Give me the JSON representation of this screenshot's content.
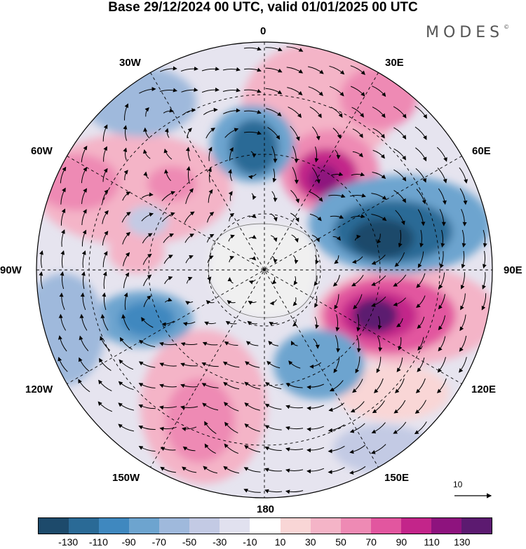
{
  "title": "Base 29/12/2024 00 UTC, valid 01/01/2025 00 UTC",
  "brand": "MODES",
  "brand_mark": "©",
  "longitude_labels": [
    "0",
    "30E",
    "60E",
    "90E",
    "120E",
    "150E",
    "180",
    "150W",
    "120W",
    "90W",
    "60W",
    "30W"
  ],
  "reference_vector_label": "10",
  "colorbar": {
    "labels": [
      "-130",
      "-110",
      "-90",
      "-70",
      "-50",
      "-30",
      "-10",
      "10",
      "30",
      "50",
      "70",
      "90",
      "110",
      "130"
    ],
    "colors": [
      "#1d4a6b",
      "#2a6a96",
      "#3f88bf",
      "#6da4cf",
      "#9fb9dc",
      "#c3cae4",
      "#e1e1ef",
      "#ffffff",
      "#f9d6d6",
      "#f4b4c7",
      "#ee8ab4",
      "#e2569f",
      "#c3258a",
      "#8e137e",
      "#5c1a70"
    ]
  },
  "map": {
    "projection": "south-polar-stereographic",
    "field": "contoured anomaly with wind vectors",
    "land_color": "#f0f0f0",
    "graticule": "dashed"
  }
}
